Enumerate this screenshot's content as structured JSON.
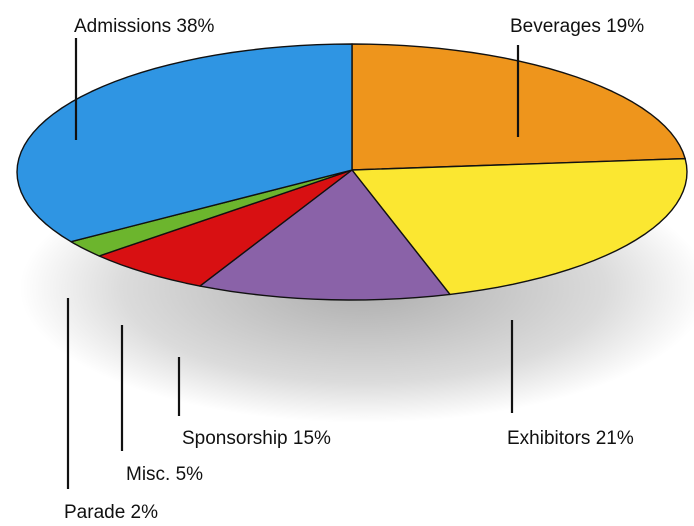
{
  "chart_data": {
    "type": "pie",
    "title": "",
    "slices": [
      {
        "label": "Beverages 19%",
        "category": "Beverages",
        "value": 19,
        "color": "#ee951c"
      },
      {
        "label": "Exhibitors 21%",
        "category": "Exhibitors",
        "value": 21,
        "color": "#fbe731"
      },
      {
        "label": "Sponsorship 15%",
        "category": "Sponsorship",
        "value": 15,
        "color": "#8a62a8"
      },
      {
        "label": "Misc. 5%",
        "category": "Misc.",
        "value": 5,
        "color": "#d81012"
      },
      {
        "label": "Parade 2%",
        "category": "Parade",
        "value": 2,
        "color": "#6cb52d"
      },
      {
        "label": "Admissions 38%",
        "category": "Admissions",
        "value": 38,
        "color": "#2f95e3"
      }
    ],
    "legend": "none",
    "style": "3d-tilted"
  }
}
